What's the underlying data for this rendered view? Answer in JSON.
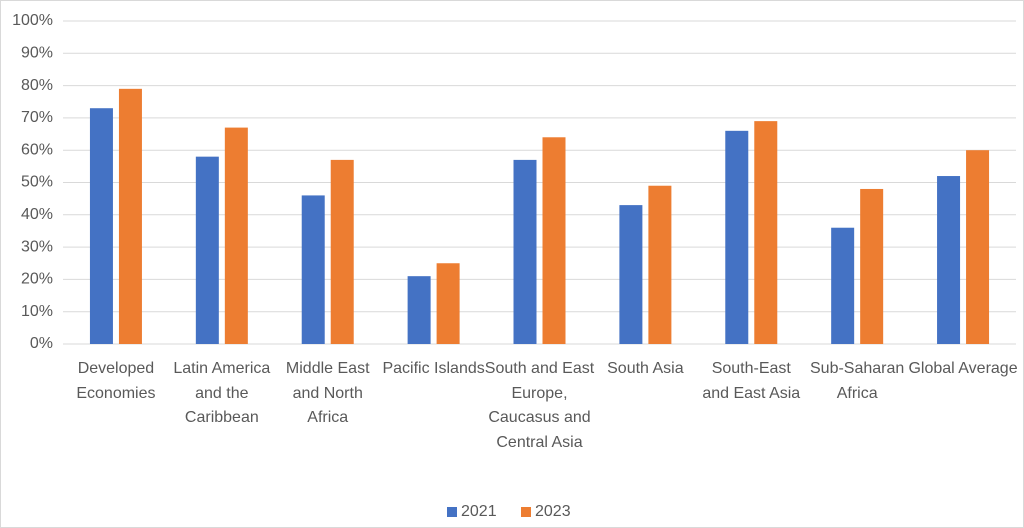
{
  "chart_data": {
    "type": "bar",
    "categories": [
      "Developed Economies",
      "Latin America and the Caribbean",
      "Middle East and North Africa",
      "Pacific Islands",
      "South and East Europe, Caucasus and Central Asia",
      "South Asia",
      "South-East and East Asia",
      "Sub-Saharan Africa",
      "Global Average"
    ],
    "series": [
      {
        "name": "2021",
        "color": "#4472c4",
        "values": [
          73,
          58,
          46,
          21,
          57,
          43,
          66,
          36,
          52
        ]
      },
      {
        "name": "2023",
        "color": "#ed7d31",
        "values": [
          79,
          67,
          57,
          25,
          64,
          49,
          69,
          48,
          60
        ]
      }
    ],
    "ylim": [
      0,
      100
    ],
    "yticks": [
      {
        "value": 0,
        "label": "0%"
      },
      {
        "value": 10,
        "label": "10%"
      },
      {
        "value": 20,
        "label": "20%"
      },
      {
        "value": 30,
        "label": "30%"
      },
      {
        "value": 40,
        "label": "40%"
      },
      {
        "value": 50,
        "label": "50%"
      },
      {
        "value": 60,
        "label": "60%"
      },
      {
        "value": 70,
        "label": "70%"
      },
      {
        "value": 80,
        "label": "80%"
      },
      {
        "value": 90,
        "label": "90%"
      },
      {
        "value": 100,
        "label": "100%"
      }
    ],
    "grid": true,
    "legend": "bottom"
  }
}
